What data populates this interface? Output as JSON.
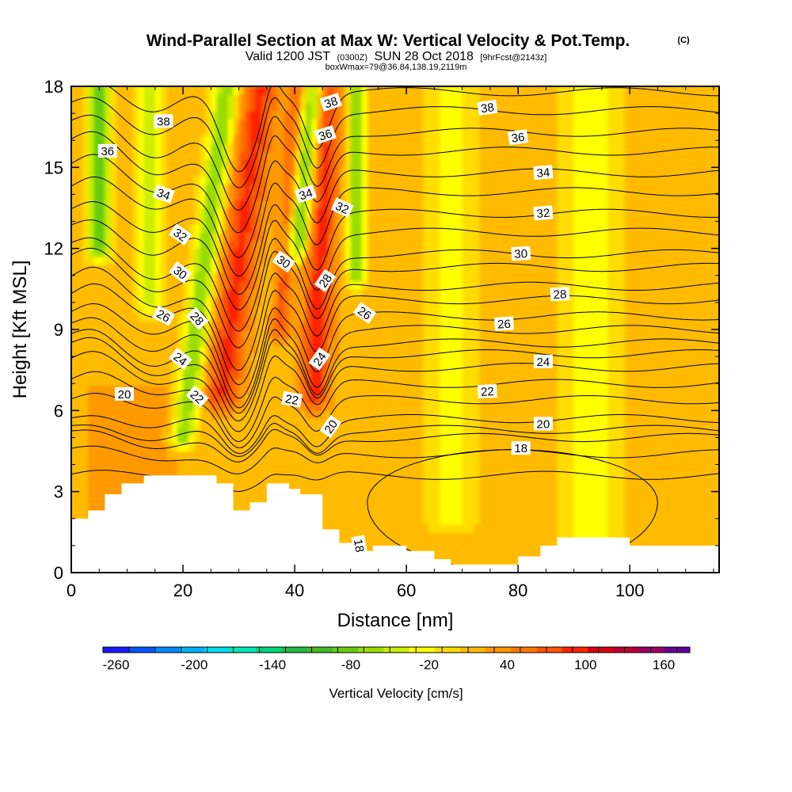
{
  "chart_data": {
    "type": "heatmap",
    "title": {
      "main": "Wind-Parallel Section at Max W: Vertical Velocity & Pot.Temp.",
      "mark": "(C)",
      "line2_a": "Valid 1200 JST",
      "line2_b": "(0300Z)",
      "line2_c": "SUN 28 Oct 2018",
      "line2_d": "[9hrFcst@2143z]",
      "line3": "boxWmax=79@36.84,138.19,2119m"
    },
    "xlabel": "Distance [nm]",
    "ylabel": "Height [Kft MSL]",
    "xlim": [
      0,
      116
    ],
    "ylim": [
      0,
      18
    ],
    "x_ticks": [
      "0",
      "20",
      "40",
      "60",
      "80",
      "100"
    ],
    "x_tick_values": [
      0,
      20,
      40,
      60,
      80,
      100
    ],
    "y_ticks": [
      "0",
      "3",
      "6",
      "9",
      "12",
      "15",
      "18"
    ],
    "y_tick_values": [
      0,
      3,
      6,
      9,
      12,
      15,
      18
    ],
    "colorbar": {
      "label": "Vertical Velocity [cm/s]",
      "ticks": [
        "-260",
        "-200",
        "-140",
        "-80",
        "-20",
        "40",
        "100",
        "160"
      ],
      "tick_values": [
        -260,
        -200,
        -140,
        -80,
        -20,
        40,
        100,
        160
      ],
      "min": -270,
      "max": 180,
      "step": 20,
      "colors": [
        "#1a1aff",
        "#0055ff",
        "#0088ff",
        "#00b4ff",
        "#00ddee",
        "#00e6b4",
        "#00d47a",
        "#22bb44",
        "#44bb22",
        "#66cc11",
        "#99dd00",
        "#ccee00",
        "#ffff00",
        "#ffdd00",
        "#ffbb00",
        "#ff9900",
        "#ff7700",
        "#ff5500",
        "#ff2200",
        "#dd0011",
        "#bb0033",
        "#990066",
        "#660099"
      ]
    },
    "field": {
      "variable": "vertical velocity (cm/s)",
      "background": 20,
      "features": [
        {
          "x": 27,
          "y_top": 18,
          "y_bot": 6.5,
          "lean": 0.6,
          "w": 3.2,
          "v": 95
        },
        {
          "x": 37.5,
          "y_top": 18,
          "y_bot": 9,
          "lean": 0.3,
          "w": 1.6,
          "v": 75
        },
        {
          "x": 43.5,
          "y_top": 18,
          "y_bot": 6.5,
          "lean": 0.2,
          "w": 2.6,
          "v": 100
        },
        {
          "x": 40.5,
          "y_top": 18,
          "y_bot": 12,
          "lean": 0.5,
          "w": 2.0,
          "v": -85
        },
        {
          "x": 20,
          "y_top": 18,
          "y_bot": 5,
          "lean": 0.6,
          "w": 2.2,
          "v": -70
        },
        {
          "x": 5,
          "y_top": 18,
          "y_bot": 12,
          "lean": 0,
          "w": 2.0,
          "v": -95
        },
        {
          "x": 14,
          "y_top": 18,
          "y_bot": 10,
          "lean": 0,
          "w": 2.0,
          "v": -50
        },
        {
          "x": 51,
          "y_top": 18,
          "y_bot": 11,
          "lean": 0,
          "w": 1.5,
          "v": -70
        },
        {
          "x": 68,
          "y_top": 18,
          "y_bot": 2,
          "lean": 0,
          "w": 4.5,
          "v": -20
        },
        {
          "x": 93,
          "y_top": 18,
          "y_bot": 1,
          "lean": 0,
          "w": 5.0,
          "v": -25
        },
        {
          "x": 11,
          "y_top": 6.5,
          "y_bot": 1,
          "lean": 0,
          "w": 8.0,
          "v": 45
        }
      ]
    },
    "terrain": {
      "x": [
        0,
        3,
        3,
        6,
        6,
        9,
        9,
        13,
        13,
        26,
        26,
        29,
        29,
        32,
        32,
        35,
        35,
        39,
        39,
        41,
        41,
        45,
        45,
        48,
        48,
        51,
        51,
        54,
        54,
        60,
        60,
        65,
        65,
        68,
        68,
        80,
        80,
        84,
        84,
        87,
        87,
        93,
        93,
        100,
        100,
        116
      ],
      "y": [
        2.0,
        2.0,
        2.3,
        2.3,
        2.9,
        2.9,
        3.3,
        3.3,
        3.6,
        3.6,
        3.3,
        3.3,
        2.3,
        2.3,
        2.6,
        2.6,
        3.3,
        3.3,
        3.1,
        3.1,
        2.9,
        2.9,
        1.6,
        1.6,
        1.1,
        1.1,
        0.8,
        0.8,
        1.0,
        1.0,
        0.8,
        0.8,
        0.5,
        0.5,
        0.3,
        0.3,
        0.6,
        0.6,
        1.0,
        1.0,
        1.3,
        1.3,
        1.3,
        1.3,
        1.0,
        1.0
      ]
    },
    "contour_levels": [
      18,
      19,
      20,
      21,
      22,
      23,
      24,
      25,
      26,
      27,
      28,
      29,
      30,
      31,
      32,
      33,
      34,
      35,
      36,
      37,
      38,
      39,
      40,
      41
    ],
    "theta_model": {
      "base_height": [
        3.6,
        4.4,
        5.0,
        5.3,
        5.7,
        6.4,
        7.0,
        7.6,
        8.1,
        8.5,
        9.0,
        9.5,
        10.1,
        10.6,
        11.3,
        11.8,
        12.6,
        13.3,
        14.1,
        14.8,
        15.6,
        16.3,
        17.1,
        17.8
      ],
      "bumps": [
        {
          "x": 30,
          "amp": 3.0,
          "w": 4.5
        },
        {
          "x": 36,
          "amp": -0.9,
          "w": 1.8
        },
        {
          "x": 44,
          "amp": 2.0,
          "w": 3.0
        },
        {
          "x": 15,
          "amp": 0.8,
          "w": 6.0
        },
        {
          "x": 4,
          "amp": -0.6,
          "w": 5.0
        }
      ]
    },
    "contour_labels": [
      {
        "text": "38",
        "x": 16.5,
        "y": 16.7,
        "angle": 0
      },
      {
        "text": "36",
        "x": 6.5,
        "y": 15.6,
        "angle": 0
      },
      {
        "text": "34",
        "x": 16.5,
        "y": 14.0,
        "angle": 20
      },
      {
        "text": "32",
        "x": 19.5,
        "y": 12.5,
        "angle": 35
      },
      {
        "text": "30",
        "x": 19.5,
        "y": 11.1,
        "angle": 38
      },
      {
        "text": "26",
        "x": 16.5,
        "y": 9.5,
        "angle": 28
      },
      {
        "text": "28",
        "x": 22.5,
        "y": 9.4,
        "angle": 48
      },
      {
        "text": "24",
        "x": 19.5,
        "y": 7.9,
        "angle": 38
      },
      {
        "text": "22",
        "x": 22.5,
        "y": 6.5,
        "angle": 42
      },
      {
        "text": "20",
        "x": 9.5,
        "y": 6.6,
        "angle": 0
      },
      {
        "text": "38",
        "x": 46.5,
        "y": 17.4,
        "angle": -18
      },
      {
        "text": "36",
        "x": 45.5,
        "y": 16.2,
        "angle": -18
      },
      {
        "text": "34",
        "x": 42.0,
        "y": 14.0,
        "angle": -18
      },
      {
        "text": "32",
        "x": 48.5,
        "y": 13.5,
        "angle": 25
      },
      {
        "text": "30",
        "x": 38.0,
        "y": 11.5,
        "angle": 35
      },
      {
        "text": "28",
        "x": 45.5,
        "y": 10.8,
        "angle": -55
      },
      {
        "text": "26",
        "x": 52.5,
        "y": 9.6,
        "angle": 35
      },
      {
        "text": "24",
        "x": 44.5,
        "y": 7.9,
        "angle": -55
      },
      {
        "text": "22",
        "x": 39.5,
        "y": 6.4,
        "angle": 10
      },
      {
        "text": "20",
        "x": 46.5,
        "y": 5.4,
        "angle": -55
      },
      {
        "text": "18",
        "x": 51.5,
        "y": 1.0,
        "angle": 80
      },
      {
        "text": "38",
        "x": 74.5,
        "y": 17.2,
        "angle": -8
      },
      {
        "text": "36",
        "x": 80.0,
        "y": 16.1,
        "angle": -8
      },
      {
        "text": "34",
        "x": 84.5,
        "y": 14.8,
        "angle": -5
      },
      {
        "text": "32",
        "x": 84.5,
        "y": 13.3,
        "angle": -5
      },
      {
        "text": "30",
        "x": 80.5,
        "y": 11.8,
        "angle": -3
      },
      {
        "text": "28",
        "x": 87.5,
        "y": 10.3,
        "angle": -3
      },
      {
        "text": "26",
        "x": 77.5,
        "y": 9.2,
        "angle": -3
      },
      {
        "text": "24",
        "x": 84.5,
        "y": 7.8,
        "angle": 0
      },
      {
        "text": "22",
        "x": 74.5,
        "y": 6.7,
        "angle": -3
      },
      {
        "text": "20",
        "x": 84.5,
        "y": 5.5,
        "angle": 0
      },
      {
        "text": "18",
        "x": 80.5,
        "y": 4.6,
        "angle": 0
      }
    ]
  }
}
